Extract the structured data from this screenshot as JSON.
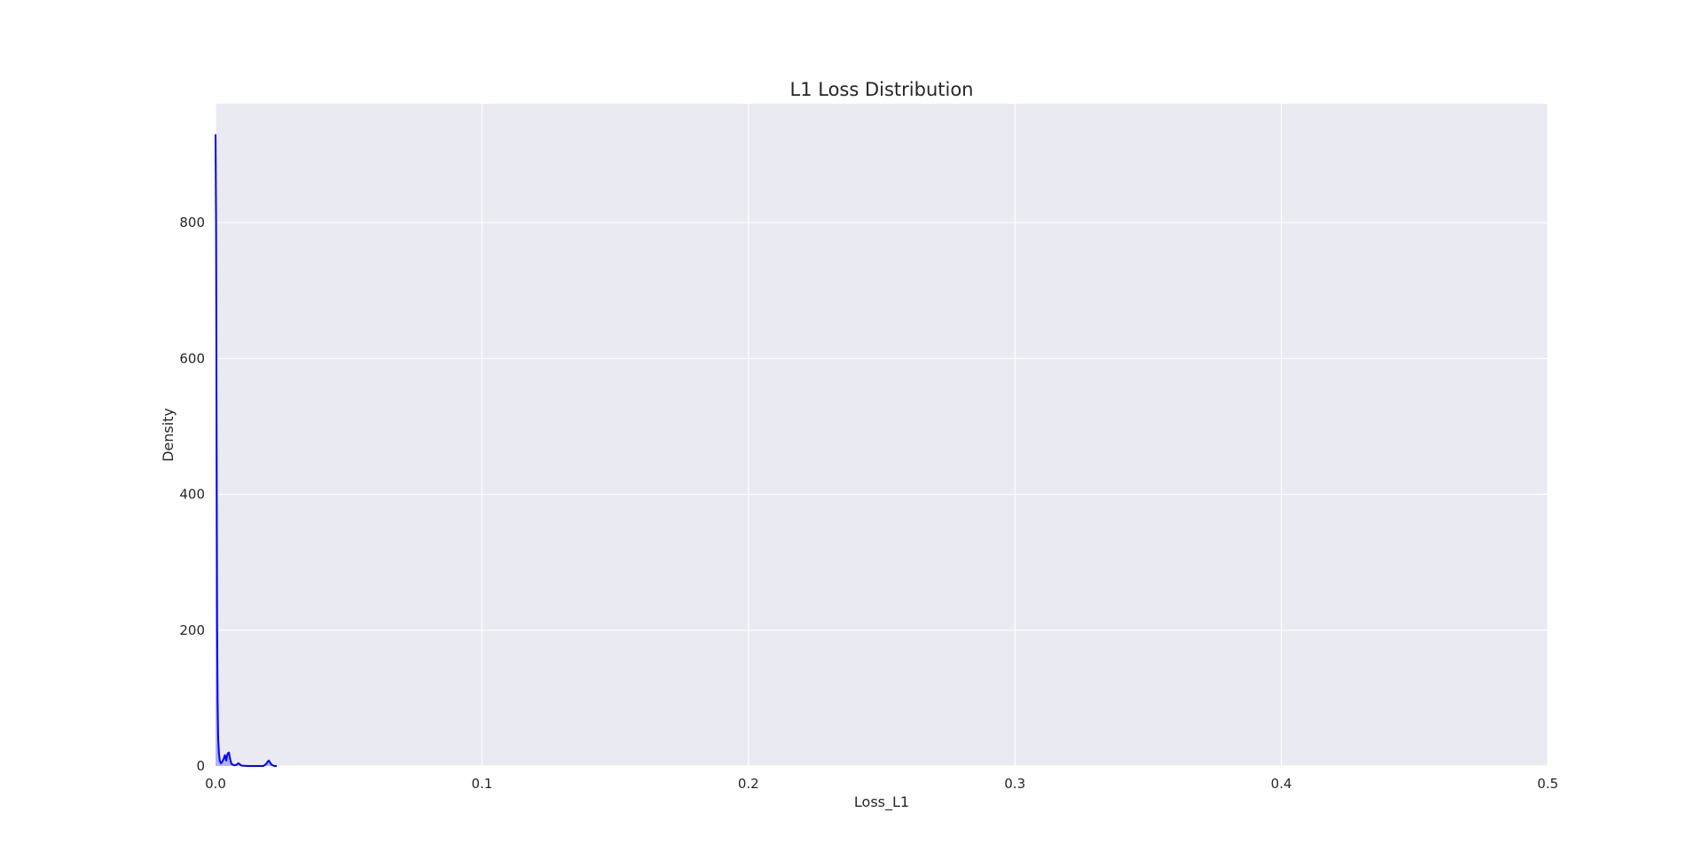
{
  "chart_data": {
    "type": "line",
    "title": "L1 Loss Distribution",
    "xlabel": "Loss_L1",
    "ylabel": "Density",
    "xlim": [
      0.0,
      0.5
    ],
    "ylim": [
      0,
      975
    ],
    "xticks": [
      0.0,
      0.1,
      0.2,
      0.3,
      0.4,
      0.5
    ],
    "xtick_labels": [
      "0.0",
      "0.1",
      "0.2",
      "0.3",
      "0.4",
      "0.5"
    ],
    "yticks": [
      0,
      200,
      400,
      600,
      800
    ],
    "ytick_labels": [
      "0",
      "200",
      "400",
      "600",
      "800"
    ],
    "grid": true,
    "background": "#eaeaf2",
    "grid_color": "#ffffff",
    "series": [
      {
        "color": "#0000ff",
        "fill_color": "#6a6af2",
        "x": [
          0.0,
          0.0002,
          0.0004,
          0.0006,
          0.0008,
          0.001,
          0.0013,
          0.0016,
          0.002,
          0.0025,
          0.003,
          0.0035,
          0.004,
          0.0045,
          0.005,
          0.0055,
          0.006,
          0.007,
          0.008,
          0.0085,
          0.009,
          0.0095,
          0.01,
          0.012,
          0.014,
          0.016,
          0.018,
          0.019,
          0.0195,
          0.02,
          0.0205,
          0.021,
          0.022,
          0.023
        ],
        "y": [
          930,
          800,
          480,
          200,
          90,
          40,
          18,
          8,
          4,
          6,
          10,
          16,
          8,
          18,
          20,
          10,
          3,
          1,
          2,
          4,
          3,
          1,
          0.5,
          0,
          0,
          0,
          0,
          3,
          6,
          8,
          5,
          2,
          0,
          0
        ]
      }
    ]
  }
}
